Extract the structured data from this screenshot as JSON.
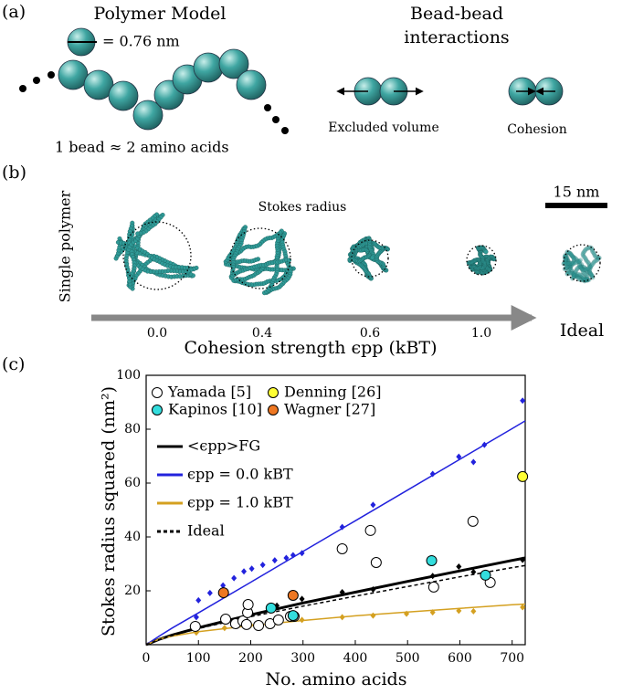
{
  "panel_a": {
    "label": "(a)",
    "title": "Polymer Model",
    "bead_size": "= 0.76 nm",
    "mapping": "1 bead ≈ 2 amino acids",
    "interactions_title": [
      "Bead-bead",
      "interactions"
    ],
    "excluded_volume": "Excluded volume",
    "cohesion": "Cohesion"
  },
  "panel_b": {
    "label": "(b)",
    "y_label": "Single polymer",
    "stokes_radius": "Stokes radius",
    "scale_bar": "15 nm",
    "x_label": "Cohesion strength ϵpp (kBT)",
    "conditions": [
      "0.0",
      "0.4",
      "0.6",
      "1.0",
      "Ideal"
    ]
  },
  "chart_data": {
    "type": "scatter",
    "label": "(c)",
    "x_label": "No. amino acids",
    "y_label": "Stokes radius squared (nm²)",
    "xlim": [
      0,
      725
    ],
    "xticks": [
      0,
      100,
      200,
      300,
      400,
      500,
      600,
      700
    ],
    "ylim": [
      0,
      100
    ],
    "yticks": [
      20,
      40,
      60,
      80,
      100
    ],
    "series": [
      {
        "name": "Yamada [5]",
        "style": "circle",
        "color": "#ffffff",
        "x": [
          94,
          152,
          171,
          185,
          192,
          194,
          195,
          215,
          237,
          253,
          276,
          283,
          375,
          429,
          440,
          550,
          625,
          658
        ],
        "values": [
          6.8,
          9.5,
          7.8,
          8.8,
          7.5,
          11.9,
          14.9,
          7.1,
          7.8,
          9.2,
          10.5,
          10.5,
          35.6,
          42.4,
          30.5,
          21.4,
          45.8,
          23.1
        ]
      },
      {
        "name": "Kapinos [10]",
        "style": "circle",
        "color": "#33dddd",
        "x": [
          239,
          281,
          546,
          649
        ],
        "values": [
          13.6,
          10.8,
          31.2,
          25.8
        ]
      },
      {
        "name": "Denning [26]",
        "style": "circle",
        "color": "#ffff33",
        "x": [
          720
        ],
        "values": [
          62.4
        ]
      },
      {
        "name": "Wagner [27]",
        "style": "circle",
        "color": "#ee7722",
        "x": [
          148,
          281
        ],
        "values": [
          19.3,
          18.3
        ]
      },
      {
        "name": "<ϵpp>FG",
        "style": "line",
        "color": "#000000",
        "x": [
          0,
          25,
          50,
          100,
          200,
          300,
          400,
          500,
          600,
          700,
          725
        ],
        "values": [
          0,
          2.0,
          3.6,
          6.3,
          11.1,
          15.5,
          19.5,
          23.5,
          27.4,
          31.3,
          32.2
        ]
      },
      {
        "name": "ϵpp = 0.0 kBT",
        "style": "line",
        "color": "#2222dd",
        "x": [
          0,
          25,
          50,
          100,
          200,
          300,
          400,
          500,
          600,
          700,
          725
        ],
        "values": [
          0,
          3.2,
          6.2,
          11.8,
          23.2,
          34.6,
          46,
          57.4,
          68.8,
          80.2,
          83.1
        ]
      },
      {
        "name": "ϵpp = 1.0 kBT",
        "style": "line",
        "color": "#d4a020",
        "x": [
          0,
          25,
          50,
          100,
          200,
          300,
          400,
          500,
          600,
          700,
          725
        ],
        "values": [
          0,
          2.1,
          3.2,
          4.8,
          7.1,
          9.0,
          10.7,
          12.1,
          13.5,
          14.8,
          15.1
        ]
      },
      {
        "name": "Ideal",
        "style": "dashed",
        "color": "#000000",
        "x": [
          0,
          25,
          50,
          100,
          200,
          300,
          400,
          500,
          600,
          700,
          725
        ],
        "values": [
          0,
          1.9,
          3.4,
          6.0,
          10.4,
          14.3,
          18.0,
          21.6,
          25.2,
          28.6,
          29.4
        ]
      },
      {
        "style": "diamond",
        "color": "#2222dd",
        "x": [
          96,
          100,
          122,
          147,
          168,
          187,
          202,
          223,
          246,
          268,
          281,
          298,
          375,
          434,
          548,
          598,
          626,
          647,
          720
        ],
        "values": [
          10.2,
          16.5,
          19.2,
          22.0,
          24.7,
          27.2,
          28.2,
          29.6,
          31.3,
          32.2,
          33.2,
          34.0,
          43.7,
          51.9,
          63.4,
          69.8,
          67.8,
          74.2,
          90.6
        ]
      },
      {
        "style": "diamond",
        "color": "#000000",
        "x": [
          96,
          150,
          200,
          250,
          298,
          375,
          434,
          548,
          598,
          626,
          720
        ],
        "values": [
          7.2,
          10.0,
          12.0,
          14.5,
          17.0,
          19.5,
          20.5,
          25.5,
          29.0,
          27.0,
          31.5
        ]
      },
      {
        "style": "diamond",
        "color": "#d4a020",
        "x": [
          96,
          150,
          200,
          250,
          298,
          375,
          434,
          498,
          548,
          598,
          626,
          720
        ],
        "values": [
          4.5,
          6.2,
          7.3,
          8.2,
          9.2,
          10.2,
          10.8,
          11.5,
          12.0,
          12.6,
          12.4,
          13.9
        ]
      }
    ]
  }
}
